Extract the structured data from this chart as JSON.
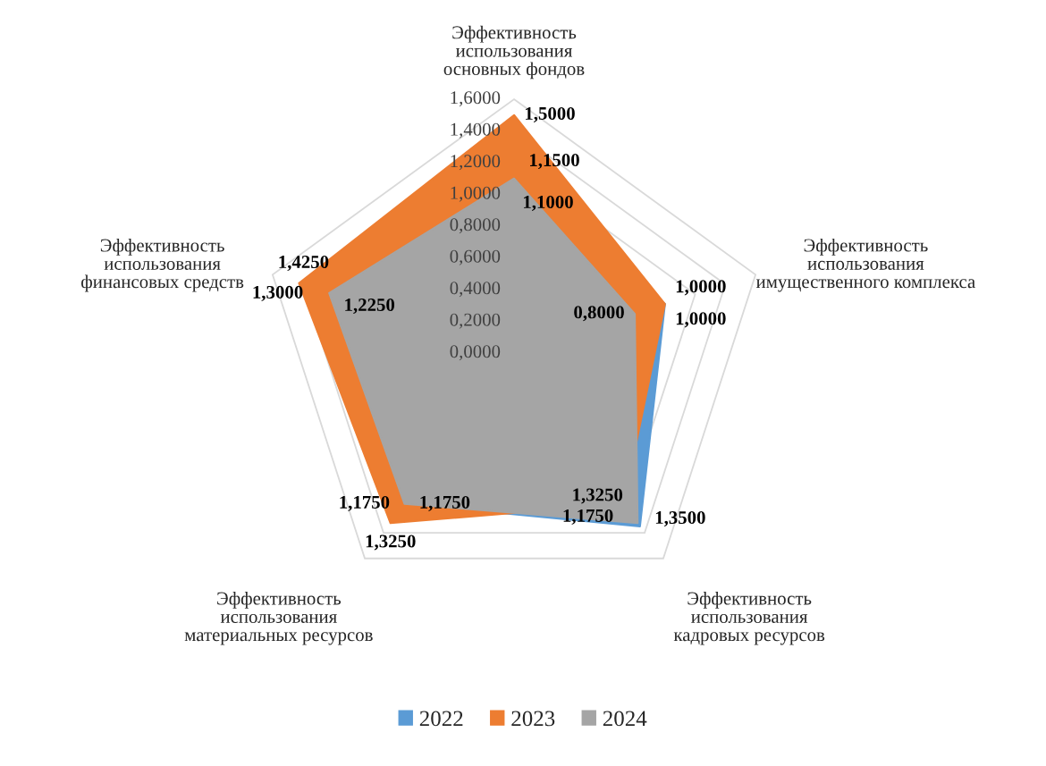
{
  "chart_data": {
    "type": "radar",
    "categories": [
      "Эффективность использования основных фондов",
      "Эффективность использования имущественного комплекса",
      "Эффективность использования кадровых ресурсов",
      "Эффективность использования материальных ресурсов",
      "Эффективность использования финансовых средств"
    ],
    "series": [
      {
        "name": "2022",
        "color": "#5b9bd5",
        "values": [
          1.15,
          1.0,
          1.35,
          1.175,
          1.3
        ],
        "value_labels": [
          "1,1500",
          "1,0000",
          "1,3500",
          "1,1750",
          "1,3000"
        ]
      },
      {
        "name": "2023",
        "color": "#ed7d31",
        "values": [
          1.5,
          1.0,
          1.175,
          1.325,
          1.425
        ],
        "value_labels": [
          "1,5000",
          "1,0000",
          "1,1750",
          "1,3250",
          "1,4250"
        ]
      },
      {
        "name": "2024",
        "color": "#a5a5a5",
        "values": [
          1.1,
          0.8,
          1.325,
          1.175,
          1.225
        ],
        "value_labels": [
          "1,1000",
          "0,8000",
          "1,3250",
          "1,1750",
          "1,2250"
        ]
      }
    ],
    "ylim": [
      0,
      1.6
    ],
    "yticks": [
      {
        "value": 0,
        "label": "0,0000"
      },
      {
        "value": 0.2,
        "label": "0,2000"
      },
      {
        "value": 0.4,
        "label": "0,4000"
      },
      {
        "value": 0.6,
        "label": "0,6000"
      },
      {
        "value": 0.8,
        "label": "0,8000"
      },
      {
        "value": 1.0,
        "label": "1,0000"
      },
      {
        "value": 1.2,
        "label": "1,2000"
      },
      {
        "value": 1.4,
        "label": "1,4000"
      },
      {
        "value": 1.6,
        "label": "1,6000"
      }
    ],
    "grid": true,
    "legend": "bottom"
  }
}
